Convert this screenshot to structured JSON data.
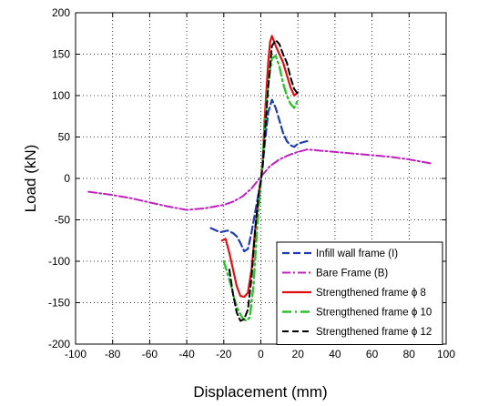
{
  "chart_data": {
    "type": "line",
    "xlabel": "Displacement (mm)",
    "ylabel": "Load (kN)",
    "xlim": [
      -100,
      100
    ],
    "ylim": [
      -200,
      200
    ],
    "xticks": [
      -100,
      -80,
      -60,
      -40,
      -20,
      0,
      20,
      40,
      60,
      80,
      100
    ],
    "yticks": [
      -200,
      -150,
      -100,
      -50,
      0,
      50,
      100,
      150,
      200
    ],
    "grid": true,
    "legend_position": "bottom-right",
    "series": [
      {
        "name": "Infill wall frame (I)",
        "color": "#1f3cb4",
        "dash": "8,4",
        "width": 2.2,
        "x": [
          -27,
          -25,
          -22,
          -18,
          -15,
          -13,
          -11,
          -9,
          -7,
          -5,
          -3,
          -1,
          0,
          1,
          2,
          4,
          6,
          8,
          10,
          12,
          14,
          16,
          18,
          20,
          25
        ],
        "y": [
          -60,
          -62,
          -65,
          -63,
          -66,
          -70,
          -78,
          -88,
          -85,
          -65,
          -40,
          -15,
          -2,
          15,
          40,
          80,
          95,
          85,
          70,
          55,
          45,
          40,
          38,
          42,
          45
        ]
      },
      {
        "name": "Bare Frame (B)",
        "color": "#c020c0",
        "dash": "9,3,2,3",
        "width": 2,
        "x": [
          -93,
          -80,
          -70,
          -60,
          -50,
          -40,
          -30,
          -20,
          -15,
          -10,
          -5,
          0,
          5,
          10,
          15,
          20,
          25,
          30,
          40,
          50,
          60,
          70,
          80,
          92
        ],
        "y": [
          -16,
          -20,
          -24,
          -29,
          -34,
          -38,
          -36,
          -32,
          -28,
          -22,
          -12,
          2,
          15,
          23,
          28,
          32,
          35,
          34,
          32,
          30,
          28,
          26,
          23,
          18
        ]
      },
      {
        "name": "Strengthened frame ϕ 8",
        "color": "#e01010",
        "dash": "",
        "width": 2.2,
        "x": [
          -21,
          -19,
          -17,
          -15,
          -13,
          -11,
          -9,
          -7,
          -5,
          -3,
          -1,
          0,
          1,
          2,
          4,
          5,
          6,
          8,
          10,
          12,
          14,
          16,
          18,
          20
        ],
        "y": [
          -75,
          -73,
          -90,
          -110,
          -130,
          -142,
          -143,
          -138,
          -110,
          -60,
          -20,
          -3,
          20,
          70,
          140,
          165,
          172,
          160,
          150,
          140,
          125,
          110,
          100,
          104
        ]
      },
      {
        "name": "Strengthened frame ϕ 10",
        "color": "#30c030",
        "dash": "10,4,2,4",
        "width": 2.4,
        "x": [
          -20,
          -18,
          -16,
          -14,
          -12,
          -10,
          -8,
          -6,
          -4,
          -2,
          0,
          1,
          2,
          4,
          6,
          8,
          10,
          12,
          14,
          16,
          18,
          20
        ],
        "y": [
          -100,
          -115,
          -130,
          -148,
          -160,
          -168,
          -172,
          -168,
          -130,
          -60,
          -5,
          20,
          60,
          115,
          145,
          148,
          135,
          115,
          100,
          90,
          85,
          95
        ]
      },
      {
        "name": "Strengthened frame ϕ 12",
        "color": "#000000",
        "dash": "7,4",
        "width": 2,
        "x": [
          -17,
          -15,
          -13,
          -11,
          -9,
          -7,
          -5,
          -3,
          -1,
          0,
          1,
          2,
          4,
          6,
          8,
          10,
          12,
          14,
          16,
          18,
          20
        ],
        "y": [
          -110,
          -140,
          -162,
          -172,
          -170,
          -158,
          -120,
          -60,
          -15,
          -3,
          15,
          50,
          110,
          160,
          167,
          162,
          150,
          140,
          122,
          108,
          102
        ]
      }
    ]
  }
}
